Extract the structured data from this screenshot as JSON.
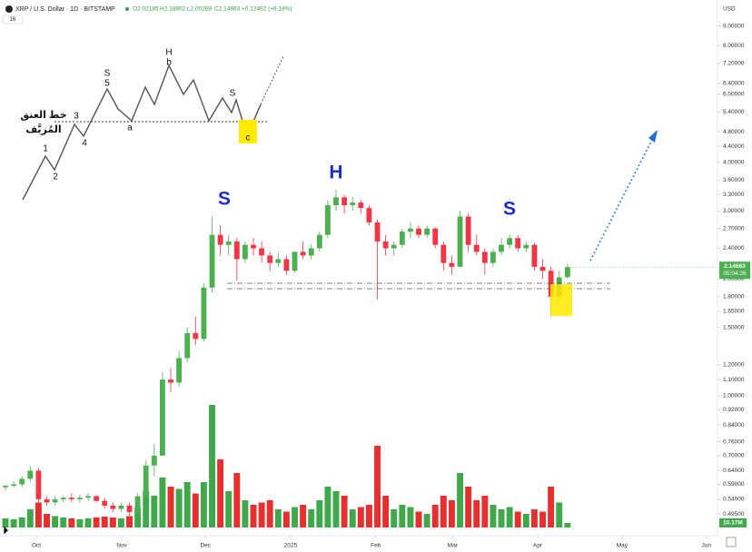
{
  "chart_data": {
    "type": "candlestick",
    "header": {
      "symbol": "XRP / U.S. Dollar · 1D · BITSTAMP",
      "ohlc": [
        "O2.02185",
        "H2.18802",
        "L2.00269",
        "C2.14663",
        "+0.12492 (+6.18%)"
      ],
      "indicator_count": "16"
    },
    "currency": "USD",
    "log_scale": true,
    "grid": false,
    "up_color": "#4caf50",
    "down_color": "#f23645",
    "volume_up_color": "#3ea84a",
    "volume_down_color": "#e5302f",
    "candles": [
      [
        0.58,
        0.59,
        0.57,
        0.585
      ],
      [
        0.585,
        0.6,
        0.58,
        0.59
      ],
      [
        0.59,
        0.62,
        0.58,
        0.61
      ],
      [
        0.61,
        0.66,
        0.6,
        0.64
      ],
      [
        0.64,
        0.65,
        0.52,
        0.54
      ],
      [
        0.54,
        0.55,
        0.52,
        0.53
      ],
      [
        0.53,
        0.55,
        0.52,
        0.54
      ],
      [
        0.54,
        0.55,
        0.53,
        0.545
      ],
      [
        0.545,
        0.56,
        0.53,
        0.54
      ],
      [
        0.54,
        0.555,
        0.53,
        0.545
      ],
      [
        0.545,
        0.56,
        0.535,
        0.55
      ],
      [
        0.55,
        0.555,
        0.53,
        0.535
      ],
      [
        0.535,
        0.545,
        0.51,
        0.52
      ],
      [
        0.52,
        0.53,
        0.5,
        0.51
      ],
      [
        0.51,
        0.53,
        0.5,
        0.52
      ],
      [
        0.52,
        0.53,
        0.49,
        0.5
      ],
      [
        0.5,
        0.56,
        0.5,
        0.55
      ],
      [
        0.55,
        0.68,
        0.54,
        0.66
      ],
      [
        0.66,
        0.75,
        0.62,
        0.7
      ],
      [
        0.7,
        1.15,
        0.7,
        1.1
      ],
      [
        1.1,
        1.18,
        1.02,
        1.08
      ],
      [
        1.08,
        1.3,
        1.05,
        1.25
      ],
      [
        1.25,
        1.5,
        1.22,
        1.45
      ],
      [
        1.45,
        1.6,
        1.35,
        1.4
      ],
      [
        1.4,
        1.95,
        1.38,
        1.9
      ],
      [
        1.9,
        2.9,
        1.85,
        2.6
      ],
      [
        2.6,
        2.75,
        2.3,
        2.45
      ],
      [
        2.45,
        2.6,
        2.3,
        2.5
      ],
      [
        2.5,
        2.55,
        1.98,
        2.25
      ],
      [
        2.25,
        2.5,
        2.2,
        2.45
      ],
      [
        2.45,
        2.55,
        2.3,
        2.4
      ],
      [
        2.4,
        2.5,
        2.2,
        2.3
      ],
      [
        2.3,
        2.35,
        2.1,
        2.2
      ],
      [
        2.2,
        2.35,
        2.15,
        2.25
      ],
      [
        2.25,
        2.3,
        2.05,
        2.1
      ],
      [
        2.1,
        2.35,
        2.08,
        2.35
      ],
      [
        2.35,
        2.5,
        2.25,
        2.3
      ],
      [
        2.3,
        2.45,
        2.25,
        2.4
      ],
      [
        2.4,
        2.65,
        2.35,
        2.6
      ],
      [
        2.6,
        3.2,
        2.55,
        3.1
      ],
      [
        3.1,
        3.4,
        3.0,
        3.25
      ],
      [
        3.25,
        3.3,
        2.95,
        3.1
      ],
      [
        3.1,
        3.25,
        3.0,
        3.15
      ],
      [
        3.15,
        3.2,
        2.95,
        3.05
      ],
      [
        3.05,
        3.1,
        2.75,
        2.8
      ],
      [
        2.8,
        2.85,
        1.77,
        2.5
      ],
      [
        2.5,
        2.6,
        2.3,
        2.4
      ],
      [
        2.4,
        2.5,
        2.3,
        2.45
      ],
      [
        2.45,
        2.7,
        2.4,
        2.65
      ],
      [
        2.65,
        2.8,
        2.55,
        2.7
      ],
      [
        2.7,
        2.75,
        2.55,
        2.6
      ],
      [
        2.6,
        2.75,
        2.55,
        2.7
      ],
      [
        2.7,
        2.72,
        2.4,
        2.45
      ],
      [
        2.45,
        2.5,
        2.1,
        2.2
      ],
      [
        2.2,
        2.3,
        2.05,
        2.15
      ],
      [
        2.15,
        3.0,
        2.15,
        2.9
      ],
      [
        2.9,
        2.95,
        2.35,
        2.45
      ],
      [
        2.45,
        2.6,
        2.3,
        2.35
      ],
      [
        2.35,
        2.4,
        2.05,
        2.2
      ],
      [
        2.2,
        2.4,
        2.15,
        2.35
      ],
      [
        2.35,
        2.55,
        2.3,
        2.45
      ],
      [
        2.45,
        2.6,
        2.4,
        2.55
      ],
      [
        2.55,
        2.6,
        2.35,
        2.4
      ],
      [
        2.4,
        2.5,
        2.35,
        2.45
      ],
      [
        2.45,
        2.48,
        2.1,
        2.15
      ],
      [
        2.15,
        2.25,
        2.0,
        2.1
      ],
      [
        2.1,
        2.15,
        1.6,
        1.8
      ],
      [
        1.8,
        2.1,
        1.75,
        2.02
      ],
      [
        2.02185,
        2.18802,
        2.00269,
        2.14663
      ]
    ],
    "volume": [
      20,
      18,
      22,
      40,
      55,
      30,
      25,
      22,
      20,
      18,
      20,
      22,
      24,
      22,
      20,
      25,
      45,
      80,
      70,
      110,
      90,
      85,
      100,
      75,
      100,
      270,
      150,
      80,
      120,
      60,
      50,
      55,
      60,
      40,
      35,
      45,
      50,
      40,
      60,
      90,
      80,
      70,
      40,
      45,
      50,
      180,
      70,
      40,
      50,
      45,
      35,
      30,
      50,
      70,
      60,
      120,
      90,
      60,
      70,
      50,
      40,
      45,
      35,
      30,
      40,
      35,
      90,
      55,
      10.17
    ],
    "volume_ylim": [
      0,
      300
    ],
    "volume_value_label": "10.17M",
    "last_price_label": "2.14663",
    "countdown": "05:04:26",
    "xlim": [
      -0.66,
      86.15
    ],
    "xticks": [
      {
        "value": 3.74,
        "label": "Oct"
      },
      {
        "value": 14.07,
        "label": "Nov"
      },
      {
        "value": 24.2,
        "label": "Dec"
      },
      {
        "value": 34.5,
        "label": "2025"
      },
      {
        "value": 44.8,
        "label": "Feb"
      },
      {
        "value": 54.1,
        "label": "Mar"
      },
      {
        "value": 64.4,
        "label": "Apr"
      },
      {
        "value": 74.6,
        "label": "May"
      },
      {
        "value": 84.8,
        "label": "Jun"
      }
    ],
    "ylim": [
      0.435,
      10.5
    ],
    "yticks": [
      {
        "value": 9,
        "label": "9.00000"
      },
      {
        "value": 8,
        "label": "8.00000"
      },
      {
        "value": 7.2,
        "label": "7.20000"
      },
      {
        "value": 6.4,
        "label": "6.40000"
      },
      {
        "value": 6,
        "label": "6.00000"
      },
      {
        "value": 5.4,
        "label": "5.40000"
      },
      {
        "value": 4.8,
        "label": "4.80000"
      },
      {
        "value": 4.4,
        "label": "4.40000"
      },
      {
        "value": 4,
        "label": "4.00000"
      },
      {
        "value": 3.6,
        "label": "3.60000"
      },
      {
        "value": 3.3,
        "label": "3.30000"
      },
      {
        "value": 3,
        "label": "3.00000"
      },
      {
        "value": 2.7,
        "label": "2.70000"
      },
      {
        "value": 2.4,
        "label": "2.40000"
      },
      {
        "value": 2,
        "label": "2.00000"
      },
      {
        "value": 1.8,
        "label": "1.80000"
      },
      {
        "value": 1.65,
        "label": "1.65000"
      },
      {
        "value": 1.5,
        "label": "1.50000"
      },
      {
        "value": 1.2,
        "label": "1.20000"
      },
      {
        "value": 1.1,
        "label": "1.10000"
      },
      {
        "value": 1,
        "label": "1.00000"
      },
      {
        "value": 0.92,
        "label": "0.92000"
      },
      {
        "value": 0.84,
        "label": "0.84000"
      },
      {
        "value": 0.76,
        "label": "0.76000"
      },
      {
        "value": 0.7,
        "label": "0.70000"
      },
      {
        "value": 0.64,
        "label": "0.64000"
      },
      {
        "value": 0.59,
        "label": "0.59000"
      },
      {
        "value": 0.54,
        "label": "0.54000"
      },
      {
        "value": 0.495,
        "label": "0.49500"
      }
    ],
    "pattern_labels": {
      "left_shoulder": "S",
      "head": "H",
      "right_shoulder": "S"
    },
    "inset": {
      "waves": [
        "1",
        "2",
        "3",
        "4",
        "5",
        "a",
        "b",
        "c"
      ],
      "shoulders": [
        "S",
        "H",
        "S"
      ],
      "neckline_text": [
        "خط العنق",
        "المُزيَّف"
      ]
    }
  }
}
